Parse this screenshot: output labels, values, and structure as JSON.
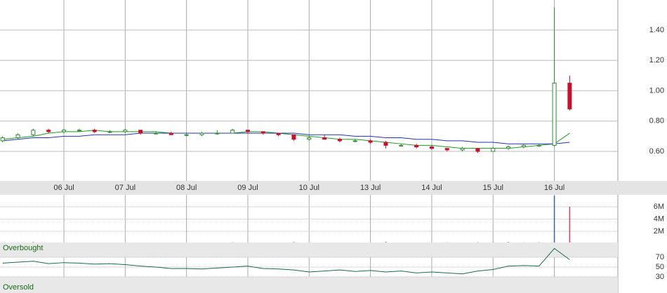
{
  "chart_data": [
    {
      "type": "candlestick",
      "categories": [
        null,
        null,
        null,
        null,
        "06 Jul",
        null,
        null,
        null,
        "07 Jul",
        null,
        null,
        null,
        "08 Jul",
        null,
        null,
        null,
        "09 Jul",
        null,
        null,
        null,
        "10 Jul",
        null,
        null,
        null,
        "13 Jul",
        null,
        null,
        null,
        "14 Jul",
        null,
        null,
        null,
        "15 Jul",
        null,
        null,
        null,
        "16 Jul",
        null
      ],
      "open": [
        0.67,
        0.69,
        0.71,
        0.74,
        0.73,
        0.74,
        0.74,
        0.73,
        0.73,
        0.74,
        0.72,
        0.72,
        0.71,
        0.71,
        0.72,
        0.72,
        0.74,
        0.73,
        0.72,
        0.71,
        0.68,
        0.69,
        0.68,
        0.67,
        0.67,
        0.66,
        0.64,
        0.64,
        0.63,
        0.62,
        0.61,
        0.62,
        0.6,
        0.62,
        0.63,
        0.64,
        0.64,
        1.05
      ],
      "high": [
        0.7,
        0.72,
        0.75,
        0.75,
        0.75,
        0.75,
        0.75,
        0.74,
        0.75,
        0.74,
        0.73,
        0.73,
        0.72,
        0.73,
        0.74,
        0.75,
        0.74,
        0.73,
        0.72,
        0.71,
        0.7,
        0.71,
        0.69,
        0.68,
        0.68,
        0.67,
        0.65,
        0.65,
        0.64,
        0.62,
        0.63,
        0.62,
        0.63,
        0.64,
        0.65,
        0.65,
        1.55,
        1.1
      ],
      "low": [
        0.66,
        0.68,
        0.7,
        0.72,
        0.72,
        0.73,
        0.72,
        0.72,
        0.72,
        0.71,
        0.71,
        0.71,
        0.7,
        0.7,
        0.71,
        0.72,
        0.72,
        0.71,
        0.7,
        0.67,
        0.67,
        0.68,
        0.66,
        0.66,
        0.65,
        0.62,
        0.63,
        0.62,
        0.61,
        0.6,
        0.6,
        0.59,
        0.6,
        0.61,
        0.62,
        0.63,
        0.63,
        0.87
      ],
      "close": [
        0.69,
        0.71,
        0.74,
        0.73,
        0.74,
        0.74,
        0.73,
        0.73,
        0.74,
        0.72,
        0.72,
        0.71,
        0.71,
        0.72,
        0.72,
        0.74,
        0.73,
        0.72,
        0.71,
        0.68,
        0.69,
        0.68,
        0.67,
        0.67,
        0.66,
        0.64,
        0.64,
        0.63,
        0.62,
        0.61,
        0.62,
        0.6,
        0.62,
        0.63,
        0.64,
        0.64,
        1.05,
        0.88
      ],
      "up_color": "#2e8b2e",
      "down_color": "#c8102e",
      "series": [
        {
          "color": "#1f9a1f",
          "values": [
            0.68,
            0.69,
            0.7,
            0.72,
            0.73,
            0.73,
            0.74,
            0.73,
            0.73,
            0.73,
            0.73,
            0.72,
            0.72,
            0.72,
            0.72,
            0.72,
            0.73,
            0.73,
            0.72,
            0.71,
            0.7,
            0.69,
            0.68,
            0.68,
            0.67,
            0.66,
            0.65,
            0.64,
            0.64,
            0.63,
            0.62,
            0.62,
            0.62,
            0.62,
            0.63,
            0.64,
            0.65,
            0.72
          ]
        },
        {
          "color": "#2233bb",
          "values": [
            0.67,
            0.68,
            0.69,
            0.69,
            0.7,
            0.7,
            0.71,
            0.71,
            0.71,
            0.72,
            0.72,
            0.72,
            0.72,
            0.72,
            0.72,
            0.72,
            0.72,
            0.72,
            0.72,
            0.72,
            0.71,
            0.71,
            0.71,
            0.7,
            0.7,
            0.69,
            0.69,
            0.68,
            0.68,
            0.67,
            0.67,
            0.66,
            0.66,
            0.65,
            0.65,
            0.65,
            0.65,
            0.66
          ]
        }
      ],
      "ylim": [
        0.406,
        1.598
      ],
      "yticks": [
        {
          "value": 0.6,
          "label": "0.60"
        },
        {
          "value": 0.8,
          "label": "0.80"
        },
        {
          "value": 1.0,
          "label": "1.00"
        },
        {
          "value": 1.2,
          "label": "1.20"
        },
        {
          "value": 1.4,
          "label": "1.40"
        }
      ],
      "grid": true
    },
    {
      "type": "bar",
      "values": [
        150000,
        200000,
        250000,
        180000,
        120000,
        100000,
        150000,
        90000,
        110000,
        160000,
        100000,
        130000,
        90000,
        120000,
        140000,
        210000,
        170000,
        130000,
        110000,
        260000,
        180000,
        150000,
        120000,
        100000,
        140000,
        280000,
        160000,
        150000,
        190000,
        200000,
        170000,
        230000,
        210000,
        250000,
        190000,
        220000,
        7800000,
        6000000
      ],
      "up_color": "#3366cc",
      "down_color": "#d04060",
      "ylim": [
        0,
        7940000
      ],
      "yticks": [
        {
          "value": 2000000,
          "label": "2M"
        },
        {
          "value": 4000000,
          "label": "4M"
        },
        {
          "value": 6000000,
          "label": "6M"
        }
      ],
      "grid": true
    },
    {
      "type": "line",
      "values": [
        58,
        60,
        62,
        57,
        59,
        58,
        56,
        57,
        55,
        52,
        50,
        47,
        47,
        46,
        48,
        50,
        52,
        47,
        46,
        44,
        40,
        42,
        44,
        41,
        43,
        40,
        42,
        38,
        40,
        38,
        36,
        42,
        45,
        52,
        53,
        52,
        88,
        65
      ],
      "color": "#1a6b4a",
      "ylim": [
        -2.9,
        100
      ],
      "yticks": [
        30,
        50,
        70
      ],
      "overbought": 70,
      "oversold": 30,
      "overbought_label": "Overbought",
      "oversold_label": "Oversold",
      "grid": true
    }
  ]
}
